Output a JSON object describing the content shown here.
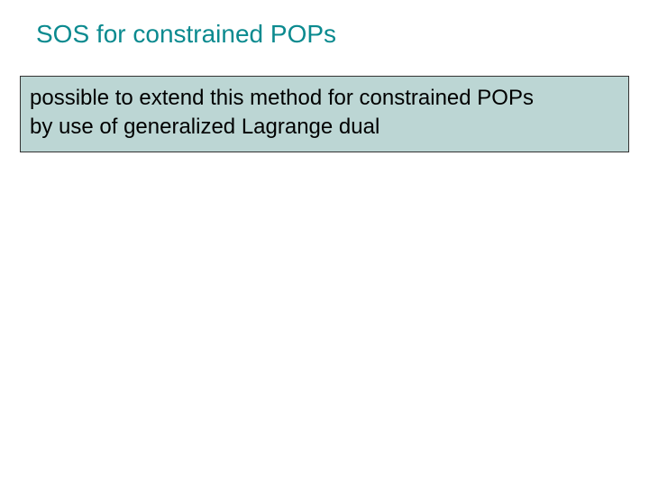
{
  "slide": {
    "title": "SOS for constrained POPs",
    "title_color": "#0b8a8f",
    "box": {
      "line1": "possible to extend this method for constrained POPs",
      "line2": "by use of generalized Lagrange dual",
      "background_color": "#bcd6d4",
      "border_color": "#333333",
      "text_color": "#000000"
    },
    "background_color": "#ffffff",
    "body_text_color": "#000000"
  }
}
